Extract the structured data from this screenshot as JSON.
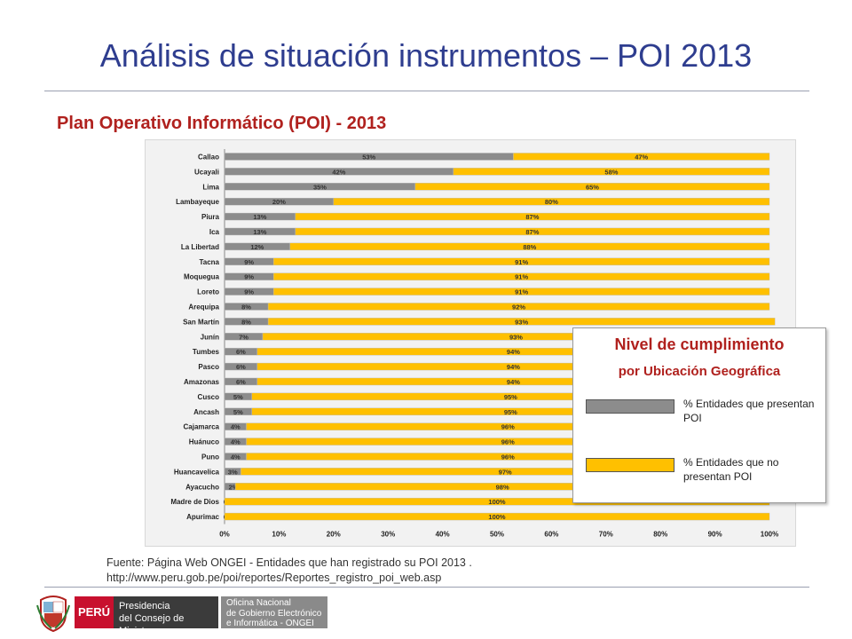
{
  "page": {
    "title": "Análisis de situación instrumentos – POI 2013",
    "subtitle": "Plan Operativo Informático (POI) - 2013"
  },
  "legend": {
    "title": "Nivel de cumplimiento",
    "subtitle": "por Ubicación Geográfica",
    "items": [
      {
        "label": "% Entidades que presentan POI",
        "color": "#8c8c8c"
      },
      {
        "label": "% Entidades que no presentan POI",
        "color": "#ffc000"
      }
    ]
  },
  "source": {
    "line1": "Fuente: Página Web ONGEI - Entidades que han registrado su POI 2013 .",
    "line2": "http://www.peru.gob.pe/poi/reportes/Reportes_registro_poi_web.asp"
  },
  "footer": {
    "country": "PERÚ",
    "pcm_line1": "Presidencia",
    "pcm_line2": "del Consejo de Ministros",
    "ongei_line1": "Oficina Nacional",
    "ongei_line2": "de Gobierno Electrónico",
    "ongei_line3": "e Informática - ONGEI"
  },
  "chart_data": {
    "type": "bar",
    "orientation": "horizontal",
    "stacked": true,
    "categories": [
      "Callao",
      "Ucayali",
      "Lima",
      "Lambayeque",
      "Piura",
      "Ica",
      "La Libertad",
      "Tacna",
      "Moquegua",
      "Loreto",
      "Arequipa",
      "San Martín",
      "Junín",
      "Tumbes",
      "Pasco",
      "Amazonas",
      "Cusco",
      "Ancash",
      "Cajamarca",
      "Huánuco",
      "Puno",
      "Huancavelica",
      "Ayacucho",
      "Madre de Dios",
      "Apurimac"
    ],
    "series": [
      {
        "name": "% Entidades que presentan POI",
        "color": "#8c8c8c",
        "values": [
          53,
          42,
          35,
          20,
          13,
          13,
          12,
          9,
          9,
          9,
          8,
          8,
          7,
          6,
          6,
          6,
          5,
          5,
          4,
          4,
          4,
          3,
          2,
          0,
          0
        ]
      },
      {
        "name": "% Entidades que no presentan POI",
        "color": "#ffc000",
        "values": [
          47,
          58,
          65,
          80,
          87,
          87,
          88,
          91,
          91,
          91,
          92,
          93,
          93,
          94,
          94,
          94,
          95,
          95,
          96,
          96,
          96,
          97,
          98,
          100,
          100
        ]
      }
    ],
    "xticks": [
      "0%",
      "10%",
      "20%",
      "30%",
      "40%",
      "50%",
      "60%",
      "70%",
      "80%",
      "90%",
      "100%"
    ],
    "xlim": [
      0,
      100
    ],
    "grid": false,
    "legend_position": "right"
  }
}
